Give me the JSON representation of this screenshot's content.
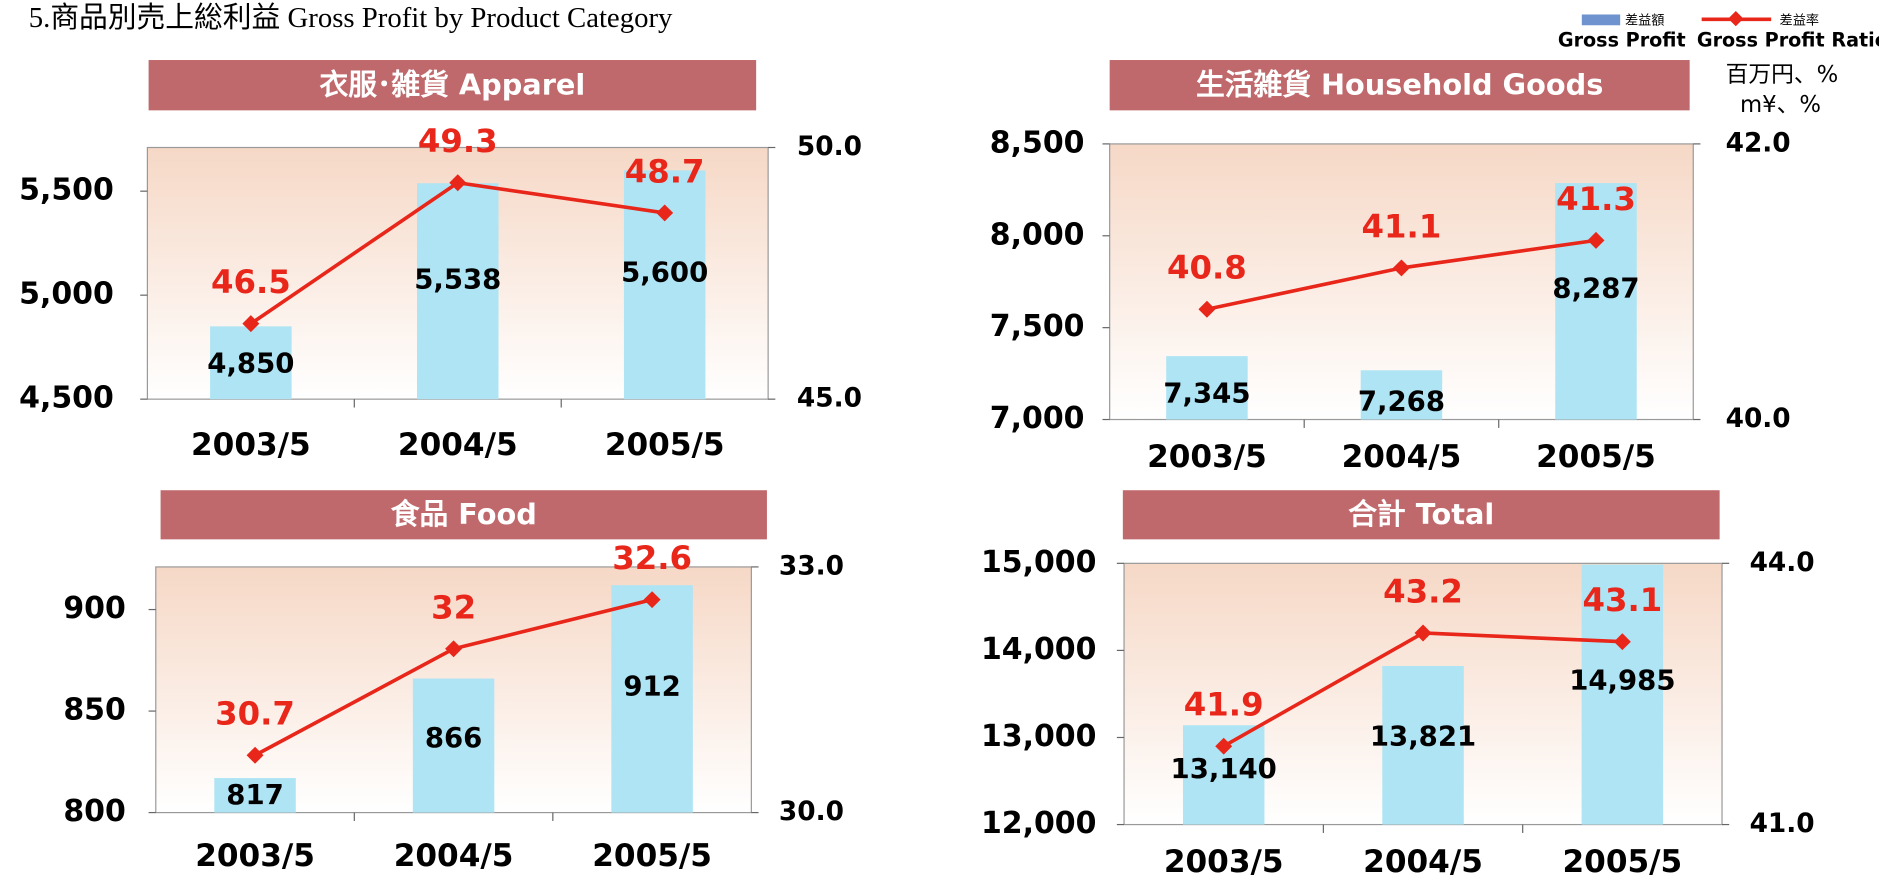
{
  "title": "5.商品別売上総利益  Gross Profit by Product Category",
  "legend": [
    {
      "name_ja": "差益額",
      "name": "Gross Profit",
      "color": "#aee4f4",
      "legend_color": "#6f93cf"
    },
    {
      "name_ja": "差益率",
      "name": "Gross Profit Ratio",
      "color": "#e8261a"
    }
  ],
  "units": [
    "百万円、%",
    "m¥、%"
  ],
  "chart_data": [
    {
      "type": "combo",
      "title": "衣服･雑貨  Apparel",
      "categories": [
        "2003/5",
        "2004/5",
        "2005/5"
      ],
      "bars": {
        "values": [
          4850,
          5538,
          5600
        ],
        "value_labels": [
          "4,850",
          "5,538",
          "5,600"
        ]
      },
      "line": {
        "values": [
          46.5,
          49.3,
          48.7
        ]
      },
      "ylim": [
        4500,
        5710
      ],
      "yticks": [
        {
          "value": 4500,
          "label": "4,500"
        },
        {
          "value": 5000,
          "label": "5,000"
        },
        {
          "value": 5500,
          "label": "5,500"
        }
      ],
      "y2lim": [
        45,
        50
      ],
      "y2ticks": [
        {
          "value": 45,
          "label": "45.0"
        },
        {
          "value": 50,
          "label": "50.0"
        }
      ]
    },
    {
      "type": "combo",
      "title": "生活雑貨  Household Goods",
      "categories": [
        "2003/5",
        "2004/5",
        "2005/5"
      ],
      "bars": {
        "values": [
          7345,
          7268,
          8287
        ],
        "value_labels": [
          "7,345",
          "7,268",
          "8,287"
        ]
      },
      "line": {
        "values": [
          40.8,
          41.1,
          41.3
        ]
      },
      "ylim": [
        7000,
        8500
      ],
      "yticks": [
        {
          "value": 7000,
          "label": "7,000"
        },
        {
          "value": 7500,
          "label": "7,500"
        },
        {
          "value": 8000,
          "label": "8,000"
        },
        {
          "value": 8500,
          "label": "8,500"
        }
      ],
      "y2lim": [
        40,
        42
      ],
      "y2ticks": [
        {
          "value": 40,
          "label": "40.0"
        },
        {
          "value": 42,
          "label": "42.0"
        }
      ]
    },
    {
      "type": "combo",
      "title": "食品  Food",
      "categories": [
        "2003/5",
        "2004/5",
        "2005/5"
      ],
      "bars": {
        "values": [
          817,
          866,
          912
        ]
      },
      "line": {
        "values": [
          30.7,
          32.0,
          32.6
        ]
      },
      "ylim": [
        800,
        921
      ],
      "yticks": [
        800,
        850,
        900
      ],
      "y2lim": [
        30,
        33
      ],
      "y2ticks": [
        {
          "value": 30,
          "label": "30.0"
        },
        {
          "value": 33,
          "label": "33.0"
        }
      ]
    },
    {
      "type": "combo",
      "title": "合計  Total",
      "categories": [
        "2003/5",
        "2004/5",
        "2005/5"
      ],
      "bars": {
        "values": [
          13140,
          13821,
          14985
        ],
        "value_labels": [
          "13,140",
          "13,821",
          "14,985"
        ]
      },
      "line": {
        "values": [
          41.9,
          43.2,
          43.1
        ]
      },
      "ylim": [
        12000,
        15000
      ],
      "yticks": [
        {
          "value": 12000,
          "label": "12,000"
        },
        {
          "value": 13000,
          "label": "13,000"
        },
        {
          "value": 14000,
          "label": "14,000"
        },
        {
          "value": 15000,
          "label": "15,000"
        }
      ],
      "y2lim": [
        41,
        44
      ],
      "y2ticks": [
        {
          "value": 41,
          "label": "41.0"
        },
        {
          "value": 44,
          "label": "44.0"
        }
      ]
    }
  ]
}
